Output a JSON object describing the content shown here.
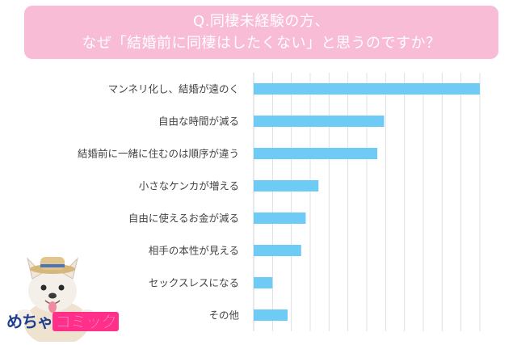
{
  "title": {
    "line1": "Q.同棲未経験の方、",
    "line2": "なぜ「結婚前に同棲はしたくない」と思うのですか？"
  },
  "logo": {
    "part1": "めちゃ",
    "part2": "コミック"
  },
  "colors": {
    "bar": "#6ecbf5",
    "title_bg": "#f9bcd6",
    "grid": "#d9d9d9"
  },
  "chart_data": {
    "type": "bar",
    "orientation": "horizontal",
    "categories": [
      "マンネリ化し、結婚が遠のく",
      "自由な時間が減る",
      "結婚前に一緒に住むのは順序が違う",
      "小さなケンカが増える",
      "自由に使えるお金が減る",
      "相手の本性が見える",
      "セックスレスになる",
      "その他"
    ],
    "values": [
      30,
      17.3,
      16.4,
      8.6,
      6.9,
      6.3,
      2.5,
      4.5
    ],
    "xlim": [
      0,
      30
    ],
    "grid": true,
    "legend": "none"
  }
}
